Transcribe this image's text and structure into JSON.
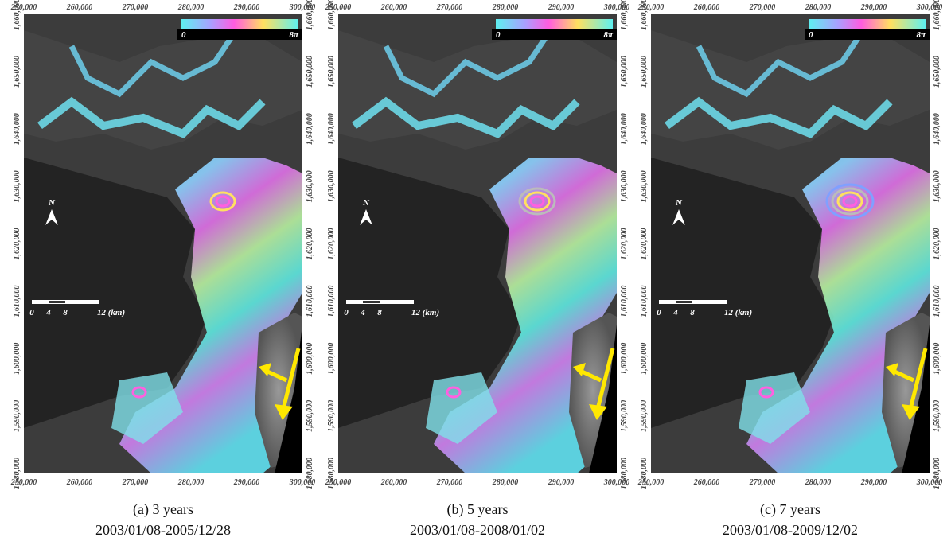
{
  "panels": [
    {
      "caption": "(a) 3 years",
      "dates": "2003/01/08-2005/12/28"
    },
    {
      "caption": "(b) 5 years",
      "dates": "2003/01/08-2008/01/02"
    },
    {
      "caption": "(c) 7 years",
      "dates": "2003/01/08-2009/12/02"
    }
  ],
  "x_ticks": [
    "250,000",
    "260,000",
    "270,000",
    "280,000",
    "290,000",
    "300,000"
  ],
  "y_ticks": [
    "1,580,000",
    "1,590,000",
    "1,600,000",
    "1,610,000",
    "1,620,000",
    "1,630,000",
    "1,640,000",
    "1,650,000",
    "1,660,000"
  ],
  "colorbar": {
    "min": "0",
    "max": "8π"
  },
  "scale_bar": {
    "ticks": [
      "0",
      "4",
      "8",
      "12 (km)"
    ]
  },
  "north": "N"
}
